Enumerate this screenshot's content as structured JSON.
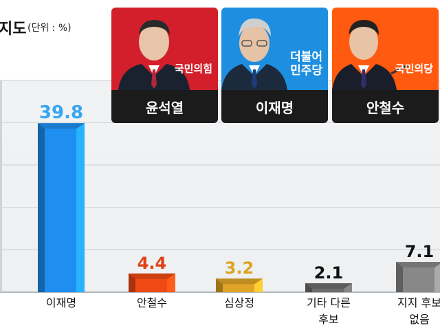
{
  "header": {
    "title": "지도",
    "subtitle": "(단위 : %)"
  },
  "candidates": [
    {
      "name": "윤석열",
      "party": "국민의힘",
      "color": "#d21f2b"
    },
    {
      "name": "이재명",
      "party": "더불어\n민주당",
      "color": "#1e8fe0"
    },
    {
      "name": "안철수",
      "party": "국민의당",
      "color": "#ff5a10"
    }
  ],
  "chart_data": {
    "type": "bar",
    "categories": [
      "이재명",
      "안철수",
      "심상정",
      "기타 다른\n후보",
      "지지 후보\n없음"
    ],
    "values": [
      39.8,
      4.4,
      3.2,
      2.1,
      7.1
    ],
    "value_labels": [
      "39.8",
      "4.4",
      "3.2",
      "2.1",
      "7.1"
    ],
    "bar_colors": [
      "#1e8ff0",
      "#f04a14",
      "#e0a526",
      "#6c6c6c",
      "#888888"
    ],
    "label_colors": [
      "#35a6f2",
      "#e04016",
      "#dba423",
      "#111111",
      "#111111"
    ],
    "title": "지도",
    "subtitle": "(단위 : %)",
    "ylim": [
      0,
      40
    ],
    "grid": true,
    "legend": "none"
  }
}
